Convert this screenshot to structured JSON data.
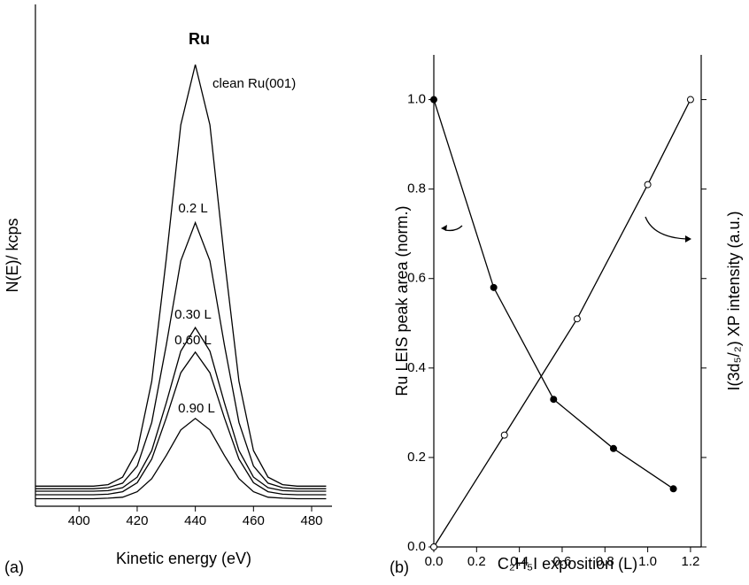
{
  "charts": [
    {
      "panel_label": "(a)",
      "chart_data": {
        "type": "line",
        "title": "Ru",
        "xlabel": "Kinetic energy (eV)",
        "ylabel": "N(E)/ kcps",
        "x": [
          385,
          390,
          395,
          400,
          405,
          410,
          415,
          420,
          425,
          430,
          435,
          440,
          445,
          450,
          455,
          460,
          465,
          470,
          475,
          480,
          485
        ],
        "xlim": [
          385,
          487
        ],
        "xticks": [
          400,
          420,
          440,
          460,
          480
        ],
        "ylim": [
          0,
          100
        ],
        "series": [
          {
            "name": "clean Ru(001)",
            "color": "#000000",
            "values": [
              4,
              4,
              4,
              4,
              4,
              4.3,
              5.8,
              11.1,
              24.9,
              49.3,
              76,
              88,
              76,
              49.3,
              24.9,
              11.1,
              5.8,
              4.3,
              4,
              4,
              4
            ]
          },
          {
            "name": "0.2 L",
            "color": "#000000",
            "values": [
              3.5,
              3.5,
              3.5,
              3.5,
              3.5,
              3.7,
              4.6,
              8,
              16.7,
              32.1,
              48.9,
              56.5,
              48.9,
              32.1,
              16.7,
              8,
              4.6,
              3.7,
              3.5,
              3.5,
              3.5
            ]
          },
          {
            "name": "0.30 L",
            "color": "#000000",
            "values": [
              3,
              3,
              3,
              3,
              3,
              3.1,
              3.7,
              5.8,
              11.1,
              20.6,
              30.9,
              35.6,
              30.9,
              20.6,
              11.1,
              5.8,
              3.7,
              3.1,
              3,
              3,
              3
            ]
          },
          {
            "name": "0.60 L",
            "color": "#000000",
            "values": [
              2.3,
              2.3,
              2.3,
              2.3,
              2.3,
              2.4,
              2.9,
              4.7,
              9.4,
              17.6,
              26.6,
              30.7,
              26.6,
              17.6,
              9.4,
              4.7,
              2.9,
              2.4,
              2.3,
              2.3,
              2.3
            ]
          },
          {
            "name": "0.90 L",
            "color": "#000000",
            "values": [
              1.5,
              1.5,
              1.5,
              1.5,
              1.5,
              1.6,
              1.8,
              2.9,
              5.5,
              10.1,
              15.2,
              17.5,
              15.2,
              10.1,
              5.5,
              2.9,
              1.8,
              1.6,
              1.5,
              1.5,
              1.5
            ]
          }
        ]
      }
    },
    {
      "panel_label": "(b)",
      "chart_data": {
        "type": "scatter-line",
        "xlabel": "C₂H₅I exposition (L)",
        "ylabel": "Ru LEIS peak area (norm.)",
        "y2label": "I(3d₅/₂) XP intensity (a.u.)",
        "xlim": [
          0,
          1.25
        ],
        "ylim": [
          0,
          1.1
        ],
        "xticks": [
          {
            "value": 0,
            "label": "0.0"
          },
          {
            "value": 0.2,
            "label": "0.2"
          },
          {
            "value": 0.4,
            "label": "0.4"
          },
          {
            "value": 0.6,
            "label": "0.6"
          },
          {
            "value": 0.8,
            "label": "0.8"
          },
          {
            "value": 1,
            "label": "1.0"
          },
          {
            "value": 1.2,
            "label": "1.2"
          }
        ],
        "yticks": [
          {
            "value": 0,
            "label": "0.0"
          },
          {
            "value": 0.2,
            "label": "0.2"
          },
          {
            "value": 0.4,
            "label": "0.4"
          },
          {
            "value": 0.6,
            "label": "0.6"
          },
          {
            "value": 0.8,
            "label": "0.8"
          },
          {
            "value": 1,
            "label": "1.0"
          }
        ],
        "series": [
          {
            "color": "#000000",
            "marker": "filled",
            "x": [
              0,
              0.28,
              0.56,
              0.84,
              1.12
            ],
            "values": [
              1.0,
              0.58,
              0.33,
              0.22,
              0.13
            ]
          },
          {
            "color": "#000000",
            "marker": "open",
            "x": [
              0,
              0.33,
              0.67,
              1.0,
              1.2
            ],
            "values": [
              0,
              0.25,
              0.51,
              0.81,
              1.0
            ]
          }
        ]
      }
    }
  ]
}
